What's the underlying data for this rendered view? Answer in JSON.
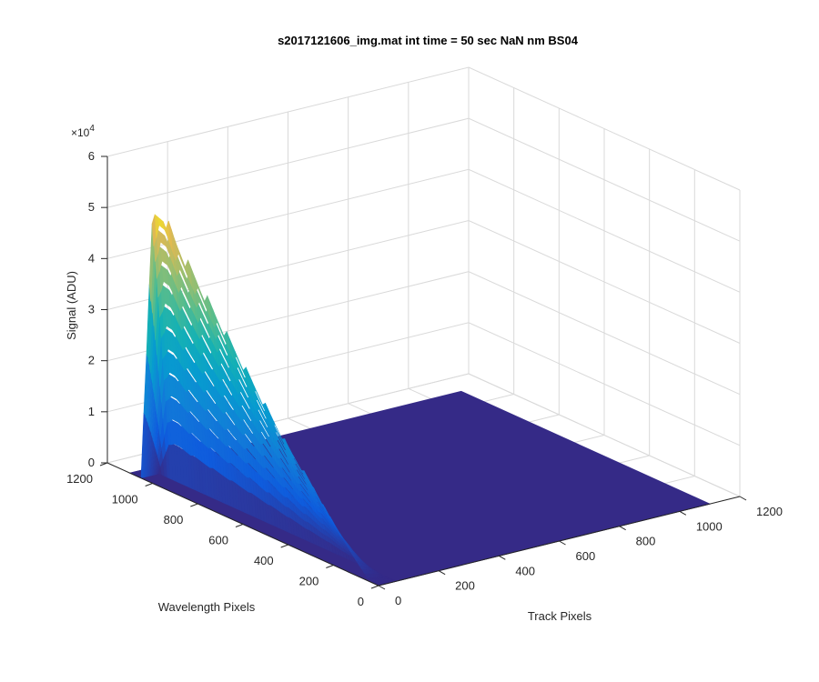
{
  "chart_data": {
    "type": "surface",
    "title": "s2017121606_img.mat int time = 50 sec  NaN nm BS04",
    "xlabel": "Track Pixels",
    "ylabel": "Wavelength Pixels",
    "zlabel": "Signal (ADU)",
    "z_multiplier_label": "×10",
    "z_multiplier_exponent": "4",
    "xlim": [
      0,
      1200
    ],
    "ylim": [
      0,
      1200
    ],
    "zlim": [
      0,
      60000
    ],
    "x_ticks": [
      0,
      200,
      400,
      600,
      800,
      1000,
      1200
    ],
    "y_ticks": [
      0,
      200,
      400,
      600,
      800,
      1000,
      1200
    ],
    "z_ticks": [
      0,
      1,
      2,
      3,
      4,
      5,
      6
    ],
    "x_tick_labels": [
      "0",
      "200",
      "400",
      "600",
      "800",
      "1000",
      "1200"
    ],
    "y_tick_labels": [
      "0",
      "200",
      "400",
      "600",
      "800",
      "1000",
      "1200"
    ],
    "z_tick_labels": [
      "0",
      "1",
      "2",
      "3",
      "4",
      "5",
      "6"
    ],
    "grid": true,
    "colormap": "parula",
    "surface_extent": {
      "x": [
        0,
        1100
      ],
      "y": [
        0,
        1100
      ]
    },
    "signal_track_range": [
      0,
      60
    ],
    "peak_profile": {
      "wavelength": [
        50,
        100,
        200,
        300,
        400,
        500,
        600,
        700,
        800,
        900,
        950,
        1000,
        1050
      ],
      "max_signal": [
        500,
        3000,
        8000,
        14000,
        19000,
        25000,
        31000,
        37000,
        43000,
        49000,
        53000,
        52000,
        2000
      ]
    },
    "background_signal": 0,
    "colors": {
      "low": "#352a87",
      "mid": "#0f9ad6",
      "high": "#f9fb0e"
    }
  }
}
